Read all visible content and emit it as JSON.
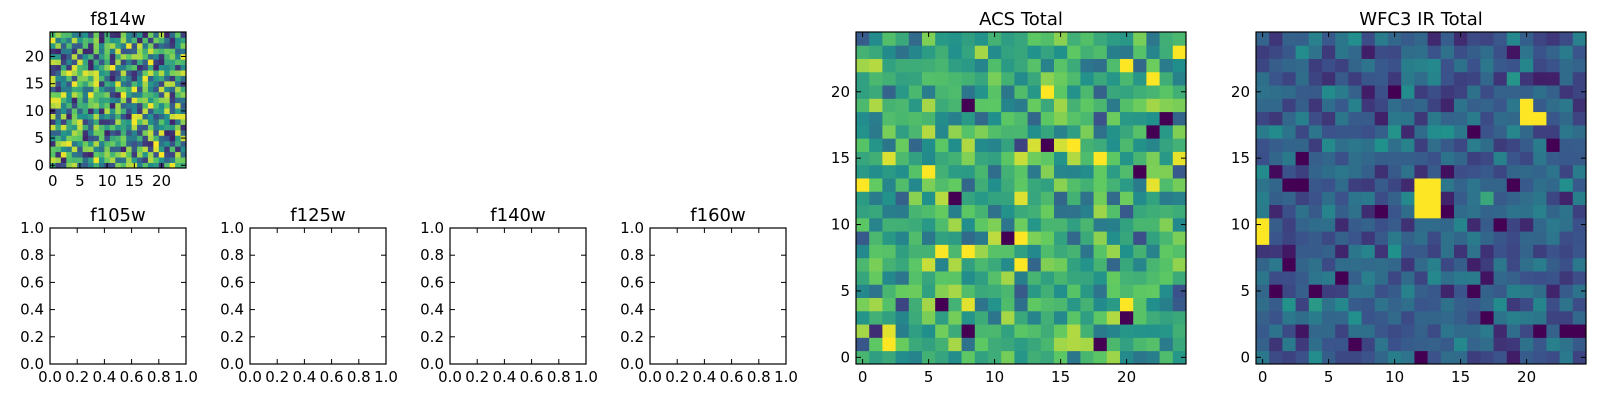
{
  "colors": {
    "viridis": [
      "#440154",
      "#3b528b",
      "#21918c",
      "#5ec962",
      "#fde725"
    ],
    "frame": "#000000",
    "background": "#ffffff"
  },
  "chart_data": [
    {
      "id": "f814w",
      "type": "heatmap",
      "title": "f814w",
      "grid_size": [
        25,
        25
      ],
      "seed": 814,
      "distribution": "uniform",
      "range": [
        0.1,
        1.0
      ],
      "xlim": [
        -0.5,
        24.5
      ],
      "ylim": [
        -0.5,
        24.5
      ],
      "xticks": [
        0,
        5,
        10,
        15,
        20
      ],
      "yticks": [
        0,
        5,
        10,
        15,
        20
      ],
      "xtick_labels": [
        "0",
        "5",
        "10",
        "15",
        "20"
      ],
      "ytick_labels": [
        "0",
        "5",
        "10",
        "15",
        "20"
      ]
    },
    {
      "id": "f105w",
      "type": "heatmap",
      "title": "f105w",
      "empty": true,
      "xlim": [
        0.0,
        1.0
      ],
      "ylim": [
        0.0,
        1.0
      ],
      "xticks": [
        0.0,
        0.2,
        0.4,
        0.6,
        0.8,
        1.0
      ],
      "yticks": [
        0.0,
        0.2,
        0.4,
        0.6,
        0.8,
        1.0
      ],
      "xtick_labels": [
        "0.0",
        "0.2",
        "0.4",
        "0.6",
        "0.8",
        "1.0"
      ],
      "ytick_labels": [
        "0.0",
        "0.2",
        "0.4",
        "0.6",
        "0.8",
        "1.0"
      ]
    },
    {
      "id": "f125w",
      "type": "heatmap",
      "title": "f125w",
      "empty": true,
      "xlim": [
        0.0,
        1.0
      ],
      "ylim": [
        0.0,
        1.0
      ],
      "xticks": [
        0.0,
        0.2,
        0.4,
        0.6,
        0.8,
        1.0
      ],
      "yticks": [
        0.0,
        0.2,
        0.4,
        0.6,
        0.8,
        1.0
      ],
      "xtick_labels": [
        "0.0",
        "0.2",
        "0.4",
        "0.6",
        "0.8",
        "1.0"
      ],
      "ytick_labels": [
        "0.0",
        "0.2",
        "0.4",
        "0.6",
        "0.8",
        "1.0"
      ]
    },
    {
      "id": "f140w",
      "type": "heatmap",
      "title": "f140w",
      "empty": true,
      "xlim": [
        0.0,
        1.0
      ],
      "ylim": [
        0.0,
        1.0
      ],
      "xticks": [
        0.0,
        0.2,
        0.4,
        0.6,
        0.8,
        1.0
      ],
      "yticks": [
        0.0,
        0.2,
        0.4,
        0.6,
        0.8,
        1.0
      ],
      "xtick_labels": [
        "0.0",
        "0.2",
        "0.4",
        "0.6",
        "0.8",
        "1.0"
      ],
      "ytick_labels": [
        "0.0",
        "0.2",
        "0.4",
        "0.6",
        "0.8",
        "1.0"
      ]
    },
    {
      "id": "f160w",
      "type": "heatmap",
      "title": "f160w",
      "empty": true,
      "xlim": [
        0.0,
        1.0
      ],
      "ylim": [
        0.0,
        1.0
      ],
      "xticks": [
        0.0,
        0.2,
        0.4,
        0.6,
        0.8,
        1.0
      ],
      "yticks": [
        0.0,
        0.2,
        0.4,
        0.6,
        0.8,
        1.0
      ],
      "xtick_labels": [
        "0.0",
        "0.2",
        "0.4",
        "0.6",
        "0.8",
        "1.0"
      ],
      "ytick_labels": [
        "0.0",
        "0.2",
        "0.4",
        "0.6",
        "0.8",
        "1.0"
      ]
    },
    {
      "id": "acs-total",
      "type": "heatmap",
      "title": "ACS Total",
      "grid_size": [
        25,
        25
      ],
      "seed": 2017,
      "distribution": "gaussian",
      "mean": 0.6,
      "sd": 0.15,
      "range": [
        0.0,
        1.0
      ],
      "xlim": [
        -0.5,
        24.5
      ],
      "ylim": [
        -0.5,
        24.5
      ],
      "xticks": [
        0,
        5,
        10,
        15,
        20
      ],
      "yticks": [
        0,
        5,
        10,
        15,
        20
      ],
      "xtick_labels": [
        "0",
        "5",
        "10",
        "15",
        "20"
      ],
      "ytick_labels": [
        "0",
        "5",
        "10",
        "15",
        "20"
      ],
      "dark_cells": [
        [
          8,
          19
        ],
        [
          14,
          16
        ],
        [
          21,
          14
        ],
        [
          20,
          3
        ],
        [
          6,
          4
        ],
        [
          8,
          2
        ],
        [
          18,
          1
        ],
        [
          7,
          12
        ],
        [
          22,
          17
        ],
        [
          23,
          18
        ],
        [
          11,
          9
        ]
      ],
      "bright_cells": [
        [
          20,
          22
        ],
        [
          14,
          20
        ],
        [
          5,
          14
        ],
        [
          0,
          13
        ],
        [
          12,
          9
        ],
        [
          8,
          8
        ],
        [
          12,
          7
        ],
        [
          20,
          4
        ],
        [
          24,
          23
        ],
        [
          18,
          15
        ]
      ]
    },
    {
      "id": "wfc3-ir-total",
      "type": "heatmap",
      "title": "WFC3 IR Total",
      "grid_size": [
        25,
        25
      ],
      "seed": 3160,
      "distribution": "gaussian",
      "mean": 0.3,
      "sd": 0.1,
      "range": [
        0.0,
        1.0
      ],
      "xlim": [
        -0.5,
        24.5
      ],
      "ylim": [
        -0.5,
        24.5
      ],
      "xticks": [
        0,
        5,
        10,
        15,
        20
      ],
      "yticks": [
        0,
        5,
        10,
        15,
        20
      ],
      "xtick_labels": [
        "0",
        "5",
        "10",
        "15",
        "20"
      ],
      "ytick_labels": [
        "0",
        "5",
        "10",
        "15",
        "20"
      ],
      "dark_cells": [
        [
          2,
          13
        ],
        [
          3,
          13
        ],
        [
          9,
          11
        ],
        [
          14,
          11
        ],
        [
          19,
          13
        ],
        [
          1,
          5
        ],
        [
          2,
          7
        ],
        [
          4,
          5
        ],
        [
          6,
          6
        ],
        [
          7,
          1
        ],
        [
          12,
          0
        ],
        [
          17,
          3
        ],
        [
          21,
          2
        ],
        [
          23,
          2
        ],
        [
          24,
          2
        ],
        [
          10,
          20
        ],
        [
          16,
          17
        ],
        [
          3,
          15
        ],
        [
          22,
          16
        ],
        [
          18,
          10
        ]
      ],
      "bright_cells": [
        [
          12,
          11
        ],
        [
          13,
          11
        ],
        [
          12,
          12
        ],
        [
          13,
          12
        ],
        [
          12,
          13
        ],
        [
          13,
          13
        ],
        [
          20,
          18
        ],
        [
          21,
          18
        ],
        [
          20,
          19
        ],
        [
          0,
          10
        ],
        [
          0,
          9
        ]
      ]
    }
  ]
}
